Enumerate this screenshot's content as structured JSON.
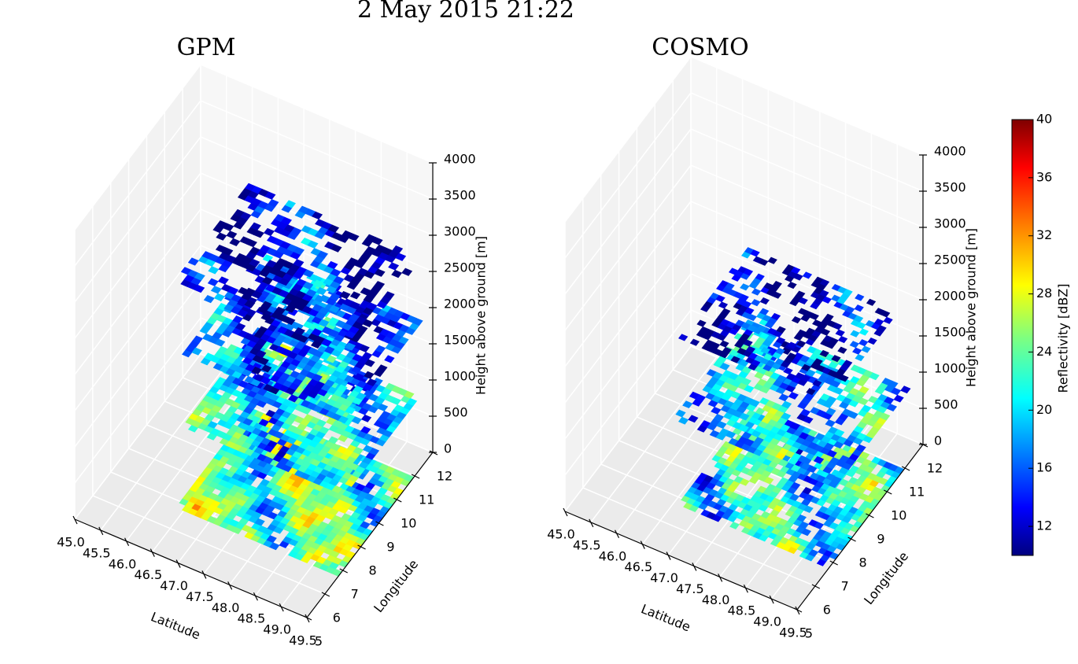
{
  "suptitle": "2 May 2015 21:22",
  "chart_data": [
    {
      "type": "surface3d",
      "title": "GPM",
      "xlabel": "Latitude",
      "ylabel": "Longitude",
      "zlabel": "Height above ground [m]",
      "xlim": [
        45,
        49.5
      ],
      "ylim": [
        5,
        12
      ],
      "zlim": [
        0,
        4000
      ],
      "xticks": [
        {
          "value": 45,
          "label": "45.0"
        },
        45.5,
        {
          "value": 46,
          "label": "46.0"
        },
        46.5,
        {
          "value": 47,
          "label": "47.0"
        },
        47.5,
        {
          "value": 48,
          "label": "48.0"
        },
        48.5,
        {
          "value": 49,
          "label": "49.0"
        },
        49.5
      ],
      "yticks": [
        5,
        6,
        7,
        8,
        9,
        10,
        11,
        12
      ],
      "zticks": [
        0,
        500,
        1000,
        1500,
        2000,
        2500,
        3000,
        3500,
        4000
      ],
      "grid": true
    },
    {
      "type": "surface3d",
      "title": "COSMO",
      "xlabel": "Latitude",
      "ylabel": "Longitude",
      "zlabel": "Height above ground [m]",
      "xlim": [
        45,
        49.5
      ],
      "ylim": [
        5,
        12
      ],
      "zlim": [
        0,
        4000
      ],
      "xticks": [
        {
          "value": 45,
          "label": "45.0"
        },
        45.5,
        {
          "value": 46,
          "label": "46.0"
        },
        46.5,
        {
          "value": 47,
          "label": "47.0"
        },
        47.5,
        {
          "value": 48,
          "label": "48.0"
        },
        48.5,
        {
          "value": 49,
          "label": "49.0"
        },
        49.5
      ],
      "yticks": [
        5,
        6,
        7,
        8,
        9,
        10,
        11,
        12
      ],
      "zticks": [
        0,
        500,
        1000,
        1500,
        2000,
        2500,
        3000,
        3500,
        4000
      ],
      "grid": true
    }
  ],
  "colorbar": {
    "label": "Reflectivity [dBZ]",
    "lim": [
      10,
      40
    ],
    "ticks": [
      12,
      16,
      20,
      24,
      28,
      32,
      36,
      40
    ],
    "colormap": "jet"
  }
}
